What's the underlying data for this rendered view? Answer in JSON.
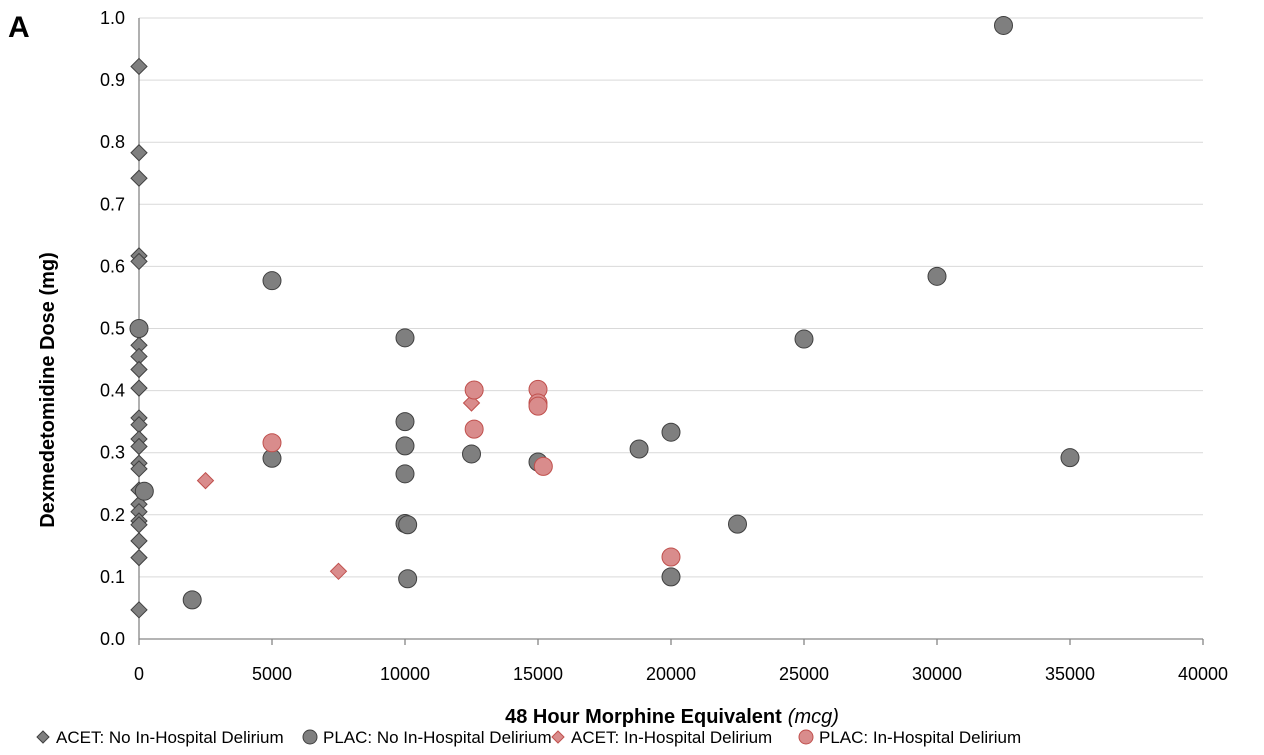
{
  "panel_label": "A",
  "chart_data": {
    "type": "scatter",
    "xlabel": "48 Hour Morphine Equivalent",
    "xlabel_unit": "(mcg)",
    "ylabel": "Dexmedetomidine Dose (mg)",
    "xlim": [
      0,
      40000
    ],
    "ylim": [
      0,
      1.0
    ],
    "xticks": [
      0,
      5000,
      10000,
      15000,
      20000,
      25000,
      30000,
      35000,
      40000
    ],
    "yticks": [
      0.0,
      0.1,
      0.2,
      0.3,
      0.4,
      0.5,
      0.6,
      0.7,
      0.8,
      0.9,
      1.0
    ],
    "ytick_labels": [
      "0.0",
      "0.1",
      "0.2",
      "0.3",
      "0.4",
      "0.5",
      "0.6",
      "0.7",
      "0.8",
      "0.9",
      "1.0"
    ],
    "grid": "horizontal",
    "legend_position": "bottom",
    "series": [
      {
        "name": "ACET: No In-Hospital Delirium",
        "marker": "diamond",
        "color": "#7f7f7f",
        "points": [
          [
            0,
            0.922
          ],
          [
            0,
            0.783
          ],
          [
            0,
            0.742
          ],
          [
            0,
            0.617
          ],
          [
            0,
            0.608
          ],
          [
            0,
            0.496
          ],
          [
            0,
            0.473
          ],
          [
            0,
            0.455
          ],
          [
            0,
            0.434
          ],
          [
            0,
            0.404
          ],
          [
            0,
            0.356
          ],
          [
            0,
            0.345
          ],
          [
            0,
            0.322
          ],
          [
            0,
            0.31
          ],
          [
            0,
            0.283
          ],
          [
            0,
            0.274
          ],
          [
            0,
            0.24
          ],
          [
            0,
            0.217
          ],
          [
            0,
            0.205
          ],
          [
            0,
            0.19
          ],
          [
            0,
            0.184
          ],
          [
            0,
            0.158
          ],
          [
            0,
            0.131
          ],
          [
            0,
            0.047
          ]
        ]
      },
      {
        "name": "PLAC: No In-Hospital Delirium",
        "marker": "circle",
        "color": "#7f7f7f",
        "points": [
          [
            32500,
            0.988
          ],
          [
            30000,
            0.584
          ],
          [
            5000,
            0.577
          ],
          [
            10000,
            0.485
          ],
          [
            25000,
            0.483
          ],
          [
            0,
            0.5
          ],
          [
            10000,
            0.35
          ],
          [
            20000,
            0.333
          ],
          [
            10000,
            0.311
          ],
          [
            18800,
            0.306
          ],
          [
            12500,
            0.298
          ],
          [
            35000,
            0.292
          ],
          [
            5000,
            0.291
          ],
          [
            15000,
            0.285
          ],
          [
            10000,
            0.266
          ],
          [
            200,
            0.238
          ],
          [
            10000,
            0.186
          ],
          [
            10100,
            0.184
          ],
          [
            22500,
            0.185
          ],
          [
            20000,
            0.1
          ],
          [
            10100,
            0.097
          ],
          [
            2000,
            0.063
          ]
        ]
      },
      {
        "name": "ACET: In-Hospital Delirium",
        "marker": "diamond",
        "color": "#d98c8c",
        "points": [
          [
            12500,
            0.38
          ],
          [
            2500,
            0.255
          ],
          [
            7500,
            0.109
          ]
        ]
      },
      {
        "name": "PLAC: In-Hospital Delirium",
        "marker": "circle",
        "color": "#d98c8c",
        "points": [
          [
            12600,
            0.401
          ],
          [
            15000,
            0.402
          ],
          [
            15000,
            0.38
          ],
          [
            15000,
            0.375
          ],
          [
            12600,
            0.338
          ],
          [
            5000,
            0.316
          ],
          [
            15200,
            0.278
          ],
          [
            20000,
            0.132
          ]
        ]
      }
    ]
  }
}
